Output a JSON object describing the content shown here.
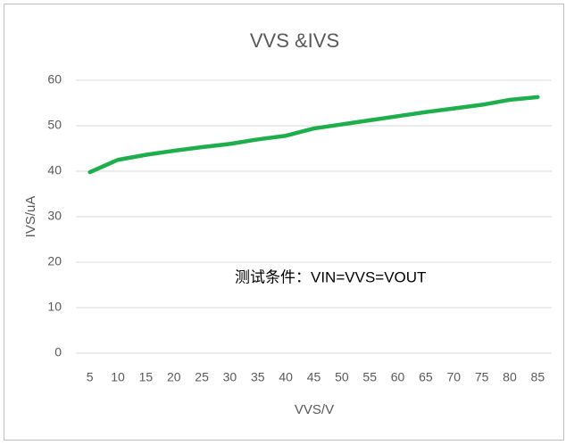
{
  "chart_data": {
    "type": "line",
    "title": "VVS &IVS",
    "x_label": "VVS/V",
    "y_label": "IVS/uA",
    "annotation": "测试条件：VIN=VVS=VOUT",
    "categories": [
      "5",
      "10",
      "15",
      "20",
      "25",
      "30",
      "35",
      "40",
      "45",
      "50",
      "55",
      "60",
      "65",
      "70",
      "75",
      "80",
      "85"
    ],
    "series": [
      {
        "name": "IVS",
        "color": "#1fae4c",
        "values": [
          39.8,
          42.5,
          43.6,
          44.5,
          45.3,
          46.0,
          47.0,
          47.8,
          49.4,
          50.3,
          51.2,
          52.1,
          53.0,
          53.8,
          54.6,
          55.7,
          56.3
        ]
      }
    ],
    "ylim": [
      0,
      60
    ],
    "yticks": [
      0,
      10,
      20,
      30,
      40,
      50,
      60
    ],
    "grid": true
  }
}
